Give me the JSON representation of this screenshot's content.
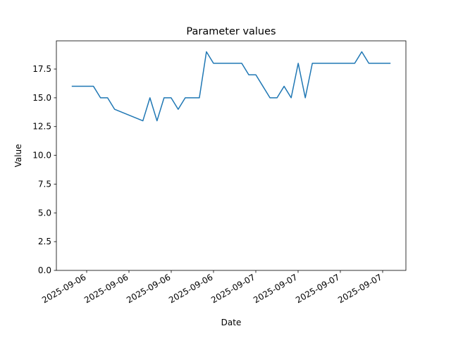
{
  "chart_data": {
    "type": "line",
    "title": "Parameter values",
    "xlabel": "Date",
    "ylabel": "Value",
    "ylim": [
      0,
      19.95
    ],
    "yticks": [
      0.0,
      2.5,
      5.0,
      7.5,
      10.0,
      12.5,
      15.0,
      17.5
    ],
    "ytick_labels": [
      "0.0",
      "2.5",
      "5.0",
      "7.5",
      "10.0",
      "12.5",
      "15.0",
      "17.5"
    ],
    "xtick_labels": [
      "2025-09-06",
      "2025-09-06",
      "2025-09-06",
      "2025-09-06",
      "2025-09-07",
      "2025-09-07",
      "2025-09-07",
      "2025-09-07"
    ],
    "grid": false,
    "color": "#1f77b4",
    "series": [
      {
        "x": [
          0,
          1,
          2,
          3,
          4,
          5,
          6,
          10,
          11,
          12,
          13,
          14,
          15,
          16,
          17,
          18,
          19,
          20,
          21,
          22,
          23,
          24,
          25,
          26,
          27,
          28,
          29,
          30,
          31,
          32,
          33,
          34,
          35,
          36,
          37,
          38,
          39,
          40,
          41,
          42,
          43,
          44,
          45
        ],
        "values": [
          16,
          16,
          16,
          16,
          15,
          15,
          14,
          13,
          15,
          13,
          15,
          15,
          14,
          15,
          15,
          15,
          19,
          18,
          18,
          18,
          18,
          18,
          17,
          17,
          16,
          15,
          15,
          16,
          15,
          18,
          15,
          18,
          18,
          18,
          18,
          18,
          18,
          18,
          19,
          18,
          18,
          18,
          18
        ]
      }
    ]
  }
}
